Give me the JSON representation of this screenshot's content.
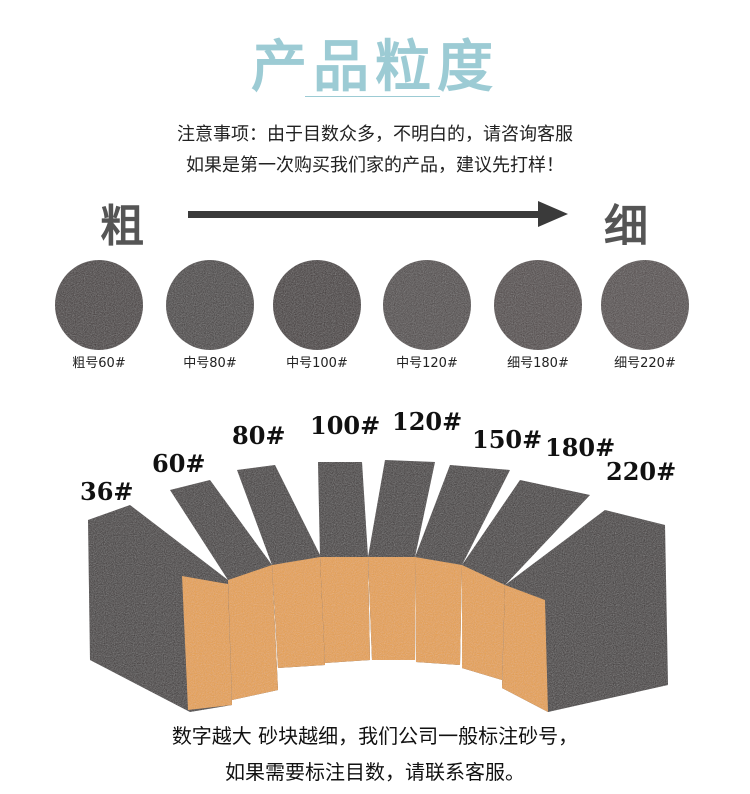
{
  "title": "产品粒度",
  "notice": {
    "line1": "注意事项：由于目数众多，不明白的，请咨询客服",
    "line2": "如果是第一次购买我们家的产品，建议先打样！"
  },
  "scale": {
    "coarse": "粗",
    "fine": "细"
  },
  "samples": [
    {
      "label": "粗号60#",
      "color": "#3d3536"
    },
    {
      "label": "中号80#",
      "color": "#403a3a"
    },
    {
      "label": "中号100#",
      "color": "#3a3233"
    },
    {
      "label": "中号120#",
      "color": "#4a4343"
    },
    {
      "label": "细号180#",
      "color": "#4a4141"
    },
    {
      "label": "细号220#",
      "color": "#4d4544"
    }
  ],
  "grits": [
    "36#",
    "60#",
    "80#",
    "100#",
    "120#",
    "150#",
    "180#",
    "220#"
  ],
  "colors": {
    "title": "#9ccbd4",
    "sponge_dark": "#3b3536",
    "sponge_orange": "#e9a04a"
  },
  "footer": {
    "line1": "数字越大 砂块越细，我们公司一般标注砂号，",
    "line2": "如果需要标注目数，请联系客服。"
  }
}
